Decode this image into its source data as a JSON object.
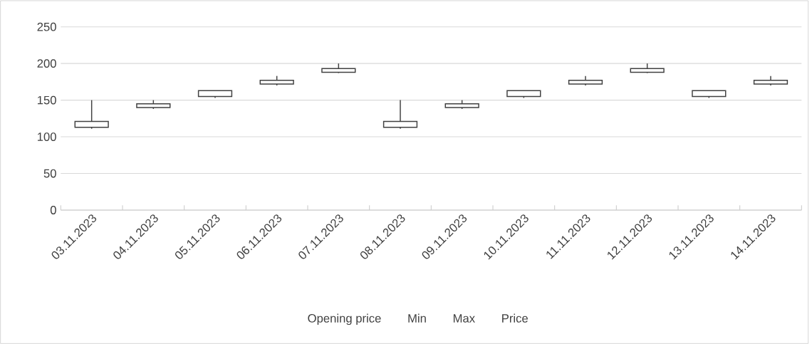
{
  "chart_data": {
    "type": "candlestick",
    "categories": [
      "03.11.2023",
      "04.11.2023",
      "05.11.2023",
      "06.11.2023",
      "07.11.2023",
      "08.11.2023",
      "09.11.2023",
      "10.11.2023",
      "11.11.2023",
      "12.11.2023",
      "13.11.2023",
      "14.11.2023"
    ],
    "ohlc": [
      [
        113,
        150,
        111,
        121
      ],
      [
        140,
        150,
        138,
        145
      ],
      [
        155,
        163,
        153,
        163
      ],
      [
        172,
        183,
        170,
        177
      ],
      [
        188,
        200,
        187,
        193
      ],
      [
        113,
        150,
        111,
        121
      ],
      [
        140,
        150,
        138,
        145
      ],
      [
        155,
        163,
        153,
        163
      ],
      [
        172,
        183,
        170,
        177
      ],
      [
        188,
        200,
        187,
        193
      ],
      [
        155,
        163,
        153,
        163
      ],
      [
        172,
        183,
        170,
        177
      ]
    ],
    "color": "#404040",
    "ylim": [
      0,
      250
    ],
    "yticks": [
      0,
      50,
      100,
      150,
      200,
      250
    ],
    "grid": "y",
    "annotations": [
      "Opening price",
      "Min",
      "Max",
      "Price"
    ]
  }
}
